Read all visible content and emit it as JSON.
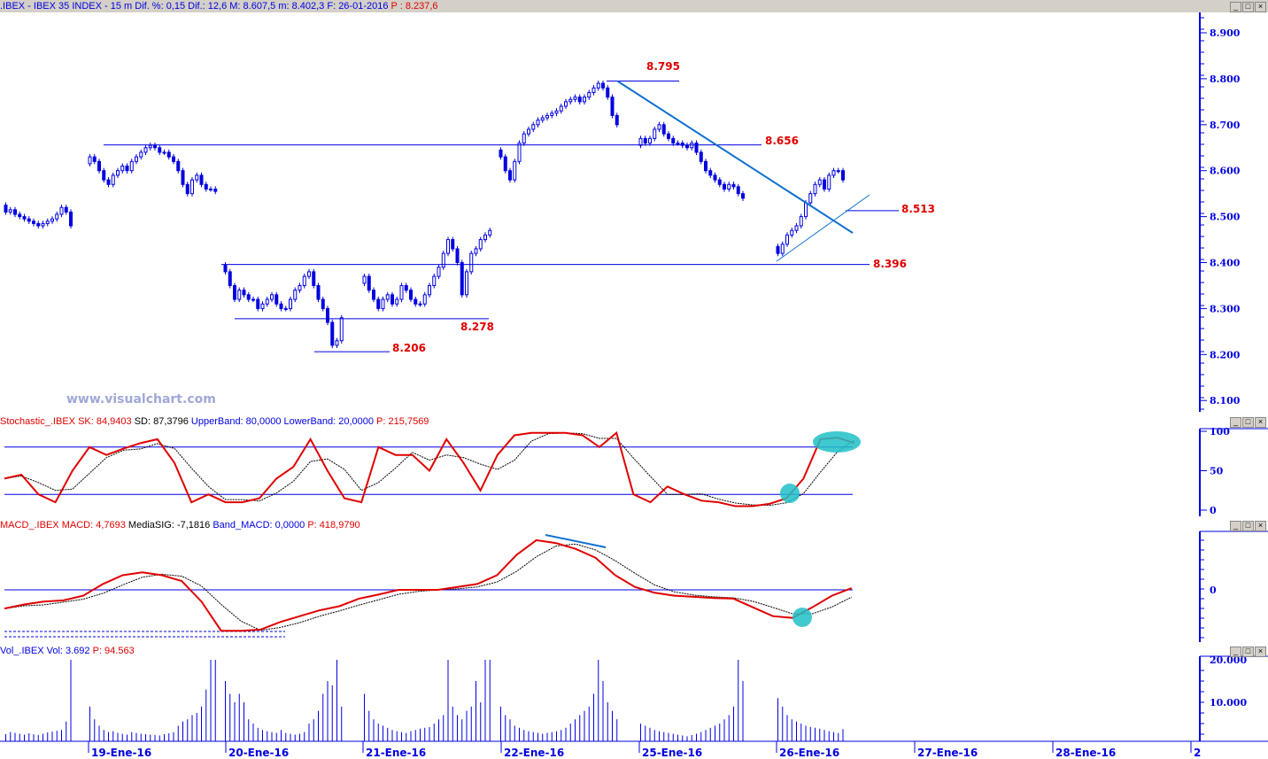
{
  "header": {
    "symbol": ".IBEX - IBEX 35 INDEX -",
    "interval": "15 m",
    "dif_pct": "Dif. %: 0,15",
    "dif": "Dif.: 12,6",
    "max": "M: 8.607,5",
    "min": "m: 8.402,3",
    "date": "F: 26-01-2016",
    "p": "P : 8.237,6"
  },
  "watermark": "www.visualchart.com",
  "stoch_header": {
    "name": "Stochastic_.IBEX",
    "sk": "SK: 84,9403",
    "sd": "SD: 87,3796",
    "upper": "UpperBand: 80,0000",
    "lower": "LowerBand: 20,0000",
    "p": "P: 215,7569"
  },
  "macd_header": {
    "name": "MACD_.IBEX",
    "macd": "MACD: 4,7693",
    "sig": "MediaSIG: -7,1816",
    "band": "Band_MACD: 0,0000",
    "p": "P: 418,9790"
  },
  "vol_header": {
    "name": "Vol_.IBEX",
    "vol": "Vol: 3.692",
    "p": "P: 94.563"
  },
  "price_axis": [
    "8.900",
    "8.800",
    "8.700",
    "8.600",
    "8.500",
    "8.400",
    "8.300",
    "8.200",
    "8.100"
  ],
  "stoch_axis": [
    "100",
    "50",
    "0"
  ],
  "macd_axis": [
    "0"
  ],
  "vol_axis": [
    "20.000",
    "10.000"
  ],
  "date_axis": [
    "19-Ene-16",
    "20-Ene-16",
    "21-Ene-16",
    "22-Ene-16",
    "25-Ene-16",
    "26-Ene-16",
    "27-Ene-16",
    "28-Ene-16",
    "2"
  ],
  "levels": [
    {
      "label": "8.795",
      "value": 8795
    },
    {
      "label": "8.656",
      "value": 8656
    },
    {
      "label": "8.513",
      "value": 8513
    },
    {
      "label": "8.396",
      "value": 8396
    },
    {
      "label": "8.278",
      "value": 8278
    },
    {
      "label": "8.206",
      "value": 8206
    }
  ],
  "colors": {
    "candle": "#0000e0",
    "level_label": "#e00000",
    "stoch_sk": "#e00000",
    "macd": "#e00000",
    "highlight": "#20c0c8",
    "trendline": "#1070d0"
  },
  "chart_data": {
    "type": "candlestick",
    "closes": [
      [
        8510,
        8515,
        8505,
        8500,
        8495,
        8490,
        8485,
        8480,
        8485,
        8490,
        8495,
        8505,
        8520,
        8510,
        8480
      ],
      [
        8630,
        8620,
        8600,
        8580,
        8570,
        8590,
        8600,
        8610,
        8600,
        8620,
        8630,
        8640,
        8650,
        8655,
        8650,
        8640,
        8640,
        8630,
        8620,
        8600,
        8570,
        8550,
        8580,
        8590,
        8570,
        8560,
        8560,
        8555
      ],
      [
        8380,
        8350,
        8320,
        8340,
        8330,
        8320,
        8320,
        8300,
        8310,
        8320,
        8330,
        8310,
        8300,
        8300,
        8320,
        8340,
        8350,
        8370,
        8380,
        8350,
        8320,
        8300,
        8270,
        8220,
        8230,
        8280
      ],
      [
        8370,
        8340,
        8320,
        8300,
        8320,
        8330,
        8310,
        8320,
        8350,
        8340,
        8320,
        8310,
        8310,
        8330,
        8350,
        8370,
        8390,
        8420,
        8450,
        8430,
        8400,
        8330,
        8380,
        8420,
        8430,
        8450,
        8460,
        8470
      ],
      [
        8630,
        8600,
        8580,
        8620,
        8660,
        8680,
        8690,
        8700,
        8710,
        8715,
        8720,
        8725,
        8730,
        8740,
        8750,
        8755,
        8760,
        8750,
        8760,
        8770,
        8780,
        8790,
        8780,
        8760,
        8720,
        8700
      ],
      [
        8670,
        8660,
        8670,
        8690,
        8700,
        8680,
        8670,
        8660,
        8660,
        8655,
        8650,
        8660,
        8640,
        8620,
        8600,
        8590,
        8580,
        8570,
        8560,
        8570,
        8565,
        8550,
        8540
      ],
      [
        8420,
        8440,
        8460,
        8470,
        8480,
        8500,
        8530,
        8550,
        8570,
        8580,
        8560,
        8590,
        8600,
        8600,
        8580
      ]
    ],
    "volume": [
      [
        2500,
        3000,
        2800,
        2600,
        2400,
        2700,
        2500,
        2300,
        2600,
        2900,
        3100,
        3300,
        3500,
        5500,
        20000
      ],
      [
        9000,
        6000,
        4500,
        3500,
        3000,
        3200,
        2800,
        2600,
        2400,
        3000,
        2800,
        2600,
        2500,
        2400,
        2300,
        2200,
        2500,
        2700,
        3000,
        4500,
        5500,
        6000,
        7000,
        7500,
        9000,
        13000,
        20000,
        20000
      ],
      [
        15000,
        12000,
        10000,
        12000,
        10000,
        6000,
        5000,
        4000,
        3500,
        3200,
        3000,
        2800,
        3500,
        2800,
        2600,
        2400,
        2600,
        3000,
        5000,
        6000,
        8000,
        12000,
        15000,
        14000,
        20000,
        9000
      ],
      [
        12000,
        8000,
        6000,
        5000,
        4500,
        4000,
        3500,
        3200,
        3000,
        2800,
        3200,
        3500,
        3800,
        4000,
        4200,
        5000,
        6000,
        7000,
        20000,
        9000,
        7000,
        6000,
        8000,
        9000,
        15000,
        10000,
        20000,
        20000
      ],
      [
        9000,
        7000,
        6000,
        4500,
        4000,
        3500,
        3200,
        3000,
        2800,
        2600,
        2800,
        3000,
        3200,
        3500,
        4000,
        5000,
        6000,
        7000,
        8000,
        9000,
        12000,
        20000,
        15000,
        10000,
        8000,
        6000
      ],
      [
        5000,
        4500,
        4000,
        3500,
        3200,
        3000,
        2800,
        2600,
        2400,
        2200,
        2000,
        2300,
        2600,
        3000,
        3500,
        4000,
        4500,
        5000,
        6000,
        7000,
        9000,
        20000,
        15000
      ],
      [
        11000,
        9000,
        7000,
        6000,
        5500,
        5000,
        4500,
        4200,
        4000,
        3800,
        3500,
        3200,
        3000,
        2800,
        3692
      ]
    ],
    "stochastic_sk": [
      40,
      45,
      20,
      10,
      50,
      80,
      70,
      78,
      85,
      90,
      60,
      10,
      20,
      10,
      10,
      15,
      40,
      55,
      90,
      50,
      15,
      10,
      80,
      70,
      70,
      50,
      90,
      60,
      25,
      70,
      95,
      98,
      98,
      98,
      95,
      80,
      98,
      20,
      10,
      30,
      20,
      12,
      10,
      5,
      5,
      8,
      15,
      40,
      90,
      92,
      85
    ],
    "macd": [
      -32,
      -25,
      -20,
      -18,
      -10,
      10,
      25,
      30,
      25,
      15,
      -20,
      -70,
      -70,
      -68,
      -55,
      -45,
      -35,
      -28,
      -15,
      -8,
      0,
      0,
      0,
      5,
      10,
      25,
      60,
      85,
      80,
      70,
      55,
      25,
      5,
      -5,
      -10,
      -12,
      -14,
      -15,
      -30,
      -45,
      -48,
      -30,
      -10,
      3
    ],
    "ylim_price": [
      8100,
      8900
    ],
    "stoch_ylim": [
      0,
      100
    ],
    "vol_ylim": [
      0,
      20000
    ]
  }
}
